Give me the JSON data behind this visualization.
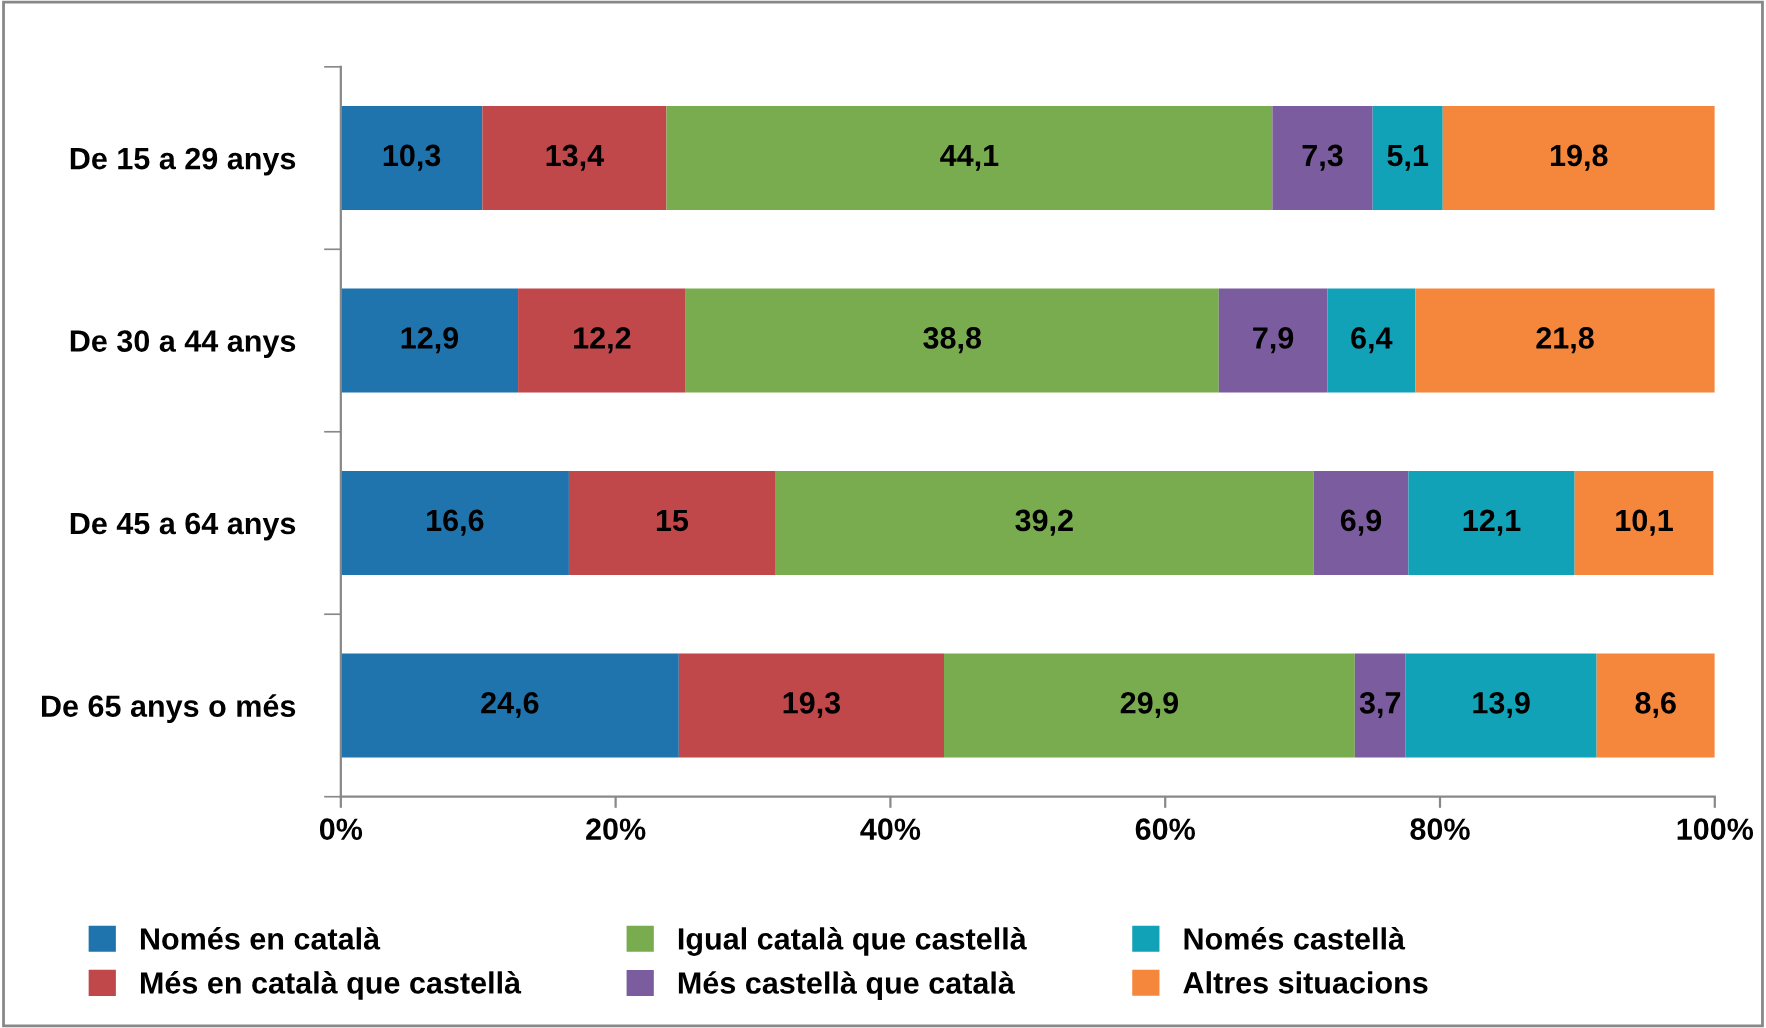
{
  "chart_data": {
    "type": "bar",
    "orientation": "horizontal",
    "stacked": true,
    "grid": false,
    "legend": "bottom",
    "categories": [
      "De 15 a 29 anys",
      "De 30 a 44 anys",
      "De 45 a 64 anys",
      "De 65 anys o més"
    ],
    "xlim": [
      0,
      100
    ],
    "xticks": [
      {
        "value": 0,
        "label": "0%"
      },
      {
        "value": 20,
        "label": "20%"
      },
      {
        "value": 40,
        "label": "40%"
      },
      {
        "value": 60,
        "label": "60%"
      },
      {
        "value": 80,
        "label": "80%"
      },
      {
        "value": 100,
        "label": "100%"
      }
    ],
    "series": [
      {
        "name": "Només en català",
        "color": "#1f74ad",
        "values": [
          10.3,
          12.9,
          16.6,
          24.6
        ],
        "value_labels": [
          "10,3",
          "12,9",
          "16,6",
          "24,6"
        ]
      },
      {
        "name": "Més en català que castellà",
        "color": "#c0474a",
        "values": [
          13.4,
          12.2,
          15,
          19.3
        ],
        "value_labels": [
          "13,4",
          "12,2",
          "15",
          "19,3"
        ]
      },
      {
        "name": "Igual català que castellà",
        "color": "#79ab4f",
        "values": [
          44.1,
          38.8,
          39.2,
          29.9
        ],
        "value_labels": [
          "44,1",
          "38,8",
          "39,2",
          "29,9"
        ]
      },
      {
        "name": "Més castellà que català",
        "color": "#7b5c9e",
        "values": [
          7.3,
          7.9,
          6.9,
          3.7
        ],
        "value_labels": [
          "7,3",
          "7,9",
          "6,9",
          "3,7"
        ]
      },
      {
        "name": "Només castellà",
        "color": "#12a2b8",
        "values": [
          5.1,
          6.4,
          12.1,
          13.9
        ],
        "value_labels": [
          "5,1",
          "6,4",
          "12,1",
          "13,9"
        ]
      },
      {
        "name": "Altres situacions",
        "color": "#f5873d",
        "values": [
          19.8,
          21.8,
          10.1,
          8.6
        ],
        "value_labels": [
          "19,8",
          "21,8",
          "10,1",
          "8,6"
        ]
      }
    ]
  }
}
